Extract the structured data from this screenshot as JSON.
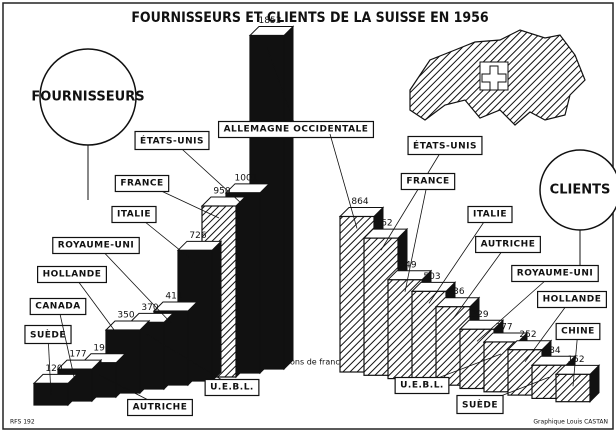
{
  "title": "FOURNISSEURS ET CLIENTS DE LA SUISSE EN 1956",
  "note": "En millions de francs suisses",
  "credit": "Graphique Louis CASTAN",
  "ref": "RFS 192",
  "chart_data": [
    {
      "type": "bar",
      "title": "FOURNISSEURS",
      "color": "#111111",
      "categories": [
        "SUÈDE",
        "CANADA",
        "AUTRICHE",
        "HOLLANDE",
        "U.E.B.L.",
        "ROYAUME-UNI",
        "ITALIE",
        "FRANCE",
        "ÉTATS-UNIS",
        "ALLEMAGNE OCCIDENTALE"
      ],
      "values": [
        120,
        177,
        190,
        350,
        370,
        411,
        726,
        950,
        1001,
        1853
      ]
    },
    {
      "type": "bar",
      "title": "CLIENTS",
      "color": "#cfcfcf",
      "categories": [
        null,
        "ÉTATS-UNIS",
        "FRANCE",
        "ITALIE",
        "AUTRICHE",
        "ROYAUME-UNI",
        "U.E.B.L.",
        "HOLLANDE",
        "SUÈDE",
        "CHINE"
      ],
      "values": [
        864,
        762,
        549,
        503,
        436,
        329,
        277,
        252,
        184,
        152
      ]
    }
  ]
}
